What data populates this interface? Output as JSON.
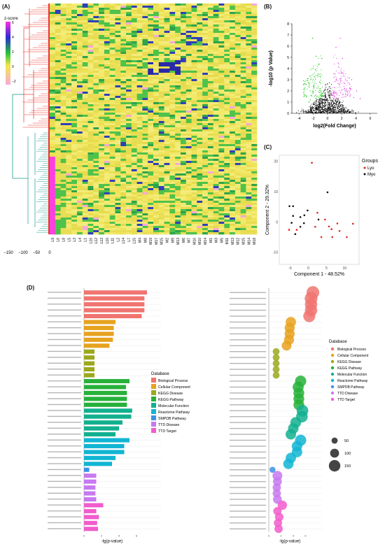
{
  "panelA": {
    "label": "(A)",
    "colorbar_title": "z-score",
    "colorbar_ticks": [
      "6",
      "4",
      "2",
      "0",
      "−2"
    ],
    "bottom_axis_ticks": [
      "−150",
      "−100",
      "−50",
      "0"
    ],
    "columns": [
      "L9",
      "L6",
      "L8",
      "L5",
      "L3",
      "L4",
      "L1",
      "L16",
      "L12",
      "L13",
      "L10",
      "L11",
      "L2",
      "L14",
      "L7",
      "L15",
      "M4",
      "M8",
      "M19",
      "M17",
      "M15",
      "M2",
      "M9",
      "M13",
      "M6",
      "M7",
      "M16",
      "M10",
      "M14",
      "M1",
      "M3",
      "M5",
      "M11",
      "M13",
      "M12",
      "M15",
      "M14",
      "M18"
    ],
    "colors": {
      "low": "#f7a8d8",
      "mid": "#f2e86a",
      "high": "#2a2aa6",
      "accent_green": "#3fbf3f",
      "red_tree": "#e8362e",
      "teal_tree": "#189a8a",
      "blue_tree": "#3a6fd0"
    }
  },
  "panelB": {
    "label": "(B)",
    "chart_data": {
      "type": "scatter",
      "title": "",
      "xlabel": "log2(Fold Change)",
      "ylabel": "-log10 (p Value)",
      "xlim": [
        -5,
        7
      ],
      "ylim": [
        0,
        8
      ],
      "xticks": [
        "-4",
        "-2",
        "0",
        "2",
        "4",
        "6"
      ],
      "yticks": [
        "0",
        "1",
        "2",
        "3",
        "4",
        "5",
        "6",
        "7",
        "8"
      ],
      "series": [
        {
          "color": "#00c400",
          "points": [
            [
              -2.1,
              6.7
            ],
            [
              -1.6,
              5.1
            ],
            [
              -1.2,
              4.4
            ],
            [
              -2.8,
              3.1
            ],
            [
              -1.9,
              2.3
            ],
            [
              -0.9,
              2.0
            ],
            [
              -3.3,
              1.5
            ],
            [
              -2.4,
              1.2
            ],
            [
              -1.4,
              3.4
            ],
            [
              -0.7,
              1.6
            ],
            [
              -3.0,
              2.6
            ],
            [
              -2.0,
              1.9
            ],
            [
              -1.1,
              2.8
            ],
            [
              -2.6,
              1.0
            ],
            [
              -1.7,
              3.9
            ],
            [
              -0.8,
              4.9
            ]
          ]
        },
        {
          "color": "#e23be0",
          "points": [
            [
              1.2,
              5.9
            ],
            [
              2.1,
              4.9
            ],
            [
              1.6,
              3.6
            ],
            [
              3.1,
              2.6
            ],
            [
              2.6,
              2.1
            ],
            [
              1.0,
              2.3
            ],
            [
              3.7,
              1.4
            ],
            [
              4.6,
              1.3
            ],
            [
              2.2,
              1.1
            ],
            [
              1.5,
              4.5
            ],
            [
              3.4,
              3.0
            ],
            [
              0.9,
              3.2
            ],
            [
              2.8,
              1.6
            ],
            [
              4.1,
              2.0
            ],
            [
              1.8,
              6.7
            ]
          ]
        },
        {
          "color": "#000000",
          "points": [
            [
              -0.5,
              0.3
            ],
            [
              0.2,
              0.8
            ],
            [
              -1.0,
              0.6
            ],
            [
              0.7,
              1.1
            ],
            [
              0.0,
              0.2
            ],
            [
              -0.3,
              1.2
            ],
            [
              1.1,
              0.5
            ],
            [
              -1.6,
              0.4
            ],
            [
              0.5,
              0.4
            ],
            [
              1.6,
              0.2
            ],
            [
              -0.8,
              0.9
            ],
            [
              0.3,
              1.4
            ],
            [
              2.2,
              0.3
            ],
            [
              -2.2,
              0.2
            ],
            [
              3.0,
              0.1
            ]
          ]
        }
      ]
    }
  },
  "panelC": {
    "label": "(C)",
    "chart_data": {
      "type": "scatter",
      "title": "",
      "xlabel": "Component 1 - 48.52%",
      "ylabel": "Component 2 - 29.32%",
      "xlim": [
        -8,
        14
      ],
      "ylim": [
        -14,
        22
      ],
      "xticks": [
        "-5",
        "0",
        "5",
        "10"
      ],
      "yticks": [
        "-10",
        "0",
        "10",
        "20"
      ],
      "legend_title": "Groups",
      "series": [
        {
          "name": "Lyo",
          "color": "#e02424",
          "points": [
            [
              1.0,
              19.5
            ],
            [
              2.5,
              3.0
            ],
            [
              4.6,
              0.8
            ],
            [
              5.7,
              -1.5
            ],
            [
              6.6,
              -5.0
            ],
            [
              8.6,
              -3.0
            ],
            [
              10.6,
              -5.0
            ],
            [
              12.3,
              -0.6
            ],
            [
              -3.2,
              -2.6
            ],
            [
              -5.3,
              -2.6
            ],
            [
              1.9,
              -1.6
            ],
            [
              3.6,
              -5.0
            ],
            [
              6.4,
              -2.4
            ],
            [
              8.0,
              -0.5
            ]
          ]
        },
        {
          "name": "Myo",
          "color": "#111111",
          "points": [
            [
              -5.2,
              5.2
            ],
            [
              -4.2,
              5.2
            ],
            [
              -4.2,
              2.0
            ],
            [
              -2.2,
              1.6
            ],
            [
              -1.1,
              2.2
            ],
            [
              -0.2,
              3.8
            ],
            [
              -2.2,
              -1.6
            ],
            [
              -4.6,
              -0.3
            ],
            [
              -3.6,
              -4.0
            ],
            [
              -1.2,
              -0.4
            ],
            [
              5.3,
              9.8
            ],
            [
              2.8,
              0.8
            ]
          ]
        }
      ]
    }
  },
  "panelD": {
    "label": "(D)",
    "xlabel_left": "-lg(p-value)",
    "xlabel_right": "-lg(p-value)",
    "xticks_left": [
      "0",
      "2",
      "4",
      "6"
    ],
    "xticks_right": [
      "0",
      "2",
      "4",
      "6"
    ],
    "legend_title": "Database",
    "legend": [
      {
        "name": "Biological Process",
        "color": "#f07470"
      },
      {
        "name": "Cellular Component",
        "color": "#e7a21f"
      },
      {
        "name": "KEGG Disease",
        "color": "#9aa81c"
      },
      {
        "name": "KEGG Pathway",
        "color": "#27b13a"
      },
      {
        "name": "Molecular Function",
        "color": "#13b08f"
      },
      {
        "name": "Reactome Pathway",
        "color": "#12b5d3"
      },
      {
        "name": "SMPDB Pathway",
        "color": "#3c92e5"
      },
      {
        "name": "TTD Disease",
        "color": "#c779f0"
      },
      {
        "name": "TTD Target",
        "color": "#f25ccd"
      }
    ],
    "size_legend": [
      "50",
      "100",
      "150"
    ],
    "chart_data": {
      "type": "bar",
      "title": "",
      "xlabel": "-lg(p-value)",
      "xlim": [
        0,
        8
      ],
      "terms": [
        {
          "db": 0,
          "v": 7.2
        },
        {
          "db": 0,
          "v": 6.9
        },
        {
          "db": 0,
          "v": 6.9
        },
        {
          "db": 0,
          "v": 6.9
        },
        {
          "db": 0,
          "v": 6.6
        },
        {
          "db": 1,
          "v": 3.6
        },
        {
          "db": 1,
          "v": 3.4
        },
        {
          "db": 1,
          "v": 3.4
        },
        {
          "db": 1,
          "v": 3.3
        },
        {
          "db": 1,
          "v": 2.9
        },
        {
          "db": 2,
          "v": 1.2
        },
        {
          "db": 2,
          "v": 1.2
        },
        {
          "db": 2,
          "v": 1.2
        },
        {
          "db": 2,
          "v": 1.2
        },
        {
          "db": 2,
          "v": 1.2
        },
        {
          "db": 3,
          "v": 5.2
        },
        {
          "db": 3,
          "v": 4.8
        },
        {
          "db": 3,
          "v": 4.9
        },
        {
          "db": 3,
          "v": 4.9
        },
        {
          "db": 3,
          "v": 4.9
        },
        {
          "db": 4,
          "v": 5.5
        },
        {
          "db": 4,
          "v": 5.4
        },
        {
          "db": 4,
          "v": 4.4
        },
        {
          "db": 4,
          "v": 4.0
        },
        {
          "db": 4,
          "v": 3.6
        },
        {
          "db": 5,
          "v": 5.2
        },
        {
          "db": 5,
          "v": 4.6
        },
        {
          "db": 5,
          "v": 4.6
        },
        {
          "db": 5,
          "v": 3.6
        },
        {
          "db": 5,
          "v": 3.2
        },
        {
          "db": 6,
          "v": 0.6
        },
        {
          "db": 7,
          "v": 1.4
        },
        {
          "db": 7,
          "v": 1.4
        },
        {
          "db": 7,
          "v": 1.3
        },
        {
          "db": 7,
          "v": 1.3
        },
        {
          "db": 7,
          "v": 1.4
        },
        {
          "db": 8,
          "v": 2.2
        },
        {
          "db": 8,
          "v": 1.4
        },
        {
          "db": 8,
          "v": 1.7
        },
        {
          "db": 8,
          "v": 1.5
        },
        {
          "db": 8,
          "v": 1.6
        }
      ],
      "bubble_sizes": [
        150,
        150,
        140,
        140,
        130,
        90,
        85,
        85,
        85,
        80,
        30,
        30,
        30,
        30,
        30,
        110,
        105,
        100,
        100,
        100,
        120,
        120,
        100,
        95,
        95,
        110,
        95,
        95,
        90,
        90,
        20,
        80,
        60,
        50,
        50,
        60,
        70,
        50,
        55,
        50,
        50
      ]
    }
  }
}
